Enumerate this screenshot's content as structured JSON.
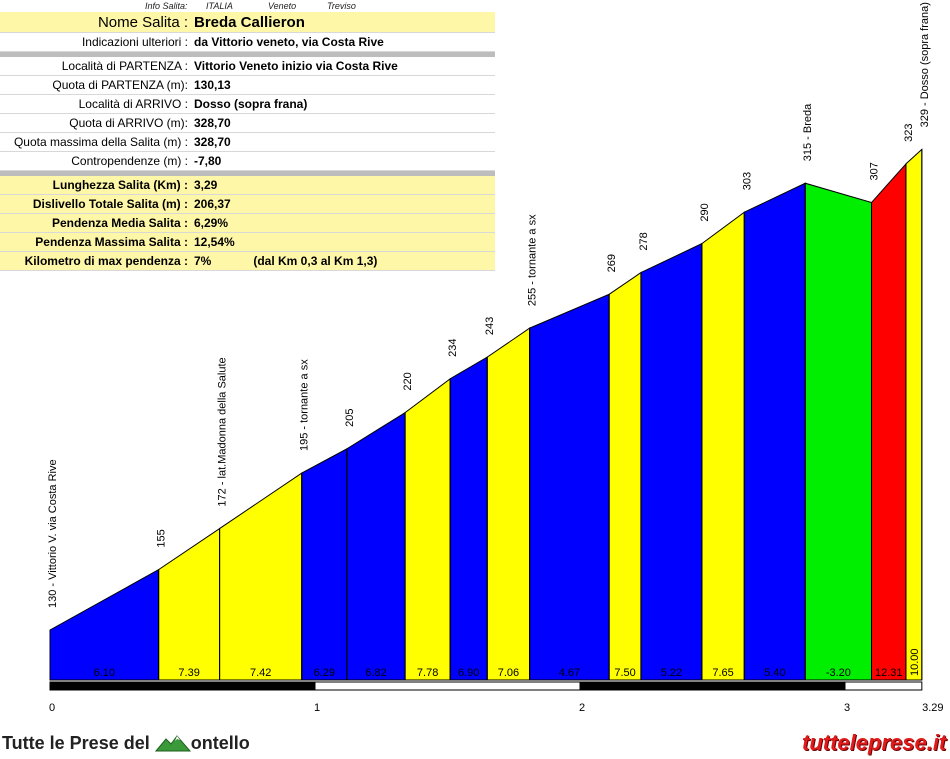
{
  "info_strip": {
    "label": "Info Salita:",
    "country": "ITALIA",
    "region": "Veneto",
    "province": "Treviso"
  },
  "info_rows": [
    {
      "label": "Nome Salita :",
      "value": "Breda Callieron",
      "style": "title"
    },
    {
      "label": "Indicazioni ulteriori :",
      "value": "da Vittorio veneto, via Costa Rive",
      "style": "plain"
    },
    {
      "label": "Località di PARTENZA :",
      "value": "Vittorio Veneto inizio via Costa Rive",
      "style": "plain"
    },
    {
      "label": "Quota di PARTENZA (m):",
      "value": "130,13",
      "style": "plain"
    },
    {
      "label": "Località di ARRIVO :",
      "value": "Dosso (sopra frana)",
      "style": "plain"
    },
    {
      "label": "Quota di ARRIVO (m):",
      "value": "328,70",
      "style": "plain"
    },
    {
      "label": "Quota massima della Salita (m) :",
      "value": "328,70",
      "style": "plain"
    },
    {
      "label": "Contropendenze (m) :",
      "value": "-7,80",
      "style": "plain"
    },
    {
      "label": "Lunghezza Salita (Km) :",
      "value": "3,29",
      "style": "bold"
    },
    {
      "label": "Dislivello Totale Salita (m) :",
      "value": "206,37",
      "style": "bold"
    },
    {
      "label": "Pendenza Media Salita :",
      "value": "6,29%",
      "style": "bold"
    },
    {
      "label": "Pendenza Massima Salita :",
      "value": "12,54%",
      "style": "bold"
    },
    {
      "label": "Kilometro di max pendenza :",
      "value": "7%",
      "note": "(dal Km 0,3 al Km 1,3)",
      "style": "bold"
    }
  ],
  "chart_data": {
    "type": "area",
    "xlabel": "",
    "ylabel": "",
    "x_ticks": [
      "0",
      "1",
      "2",
      "3",
      "3.29"
    ],
    "x_tick_values": [
      0,
      1,
      2,
      3,
      3.29
    ],
    "xlim": [
      0,
      3.29
    ],
    "altitude_labels": [
      {
        "x": 0.0,
        "alt": 130,
        "text": "130 - Vittorio V. via Costa Rive"
      },
      {
        "x": 0.41,
        "alt": 155,
        "text": "155"
      },
      {
        "x": 0.64,
        "alt": 172,
        "text": "172 - lat.Madonna della Salute"
      },
      {
        "x": 0.95,
        "alt": 195,
        "text": "195 - tornante a sx"
      },
      {
        "x": 1.12,
        "alt": 205,
        "text": "205"
      },
      {
        "x": 1.34,
        "alt": 220,
        "text": "220"
      },
      {
        "x": 1.51,
        "alt": 234,
        "text": "234"
      },
      {
        "x": 1.65,
        "alt": 243,
        "text": "243"
      },
      {
        "x": 1.81,
        "alt": 255,
        "text": "255 - tornante a sx"
      },
      {
        "x": 2.11,
        "alt": 269,
        "text": "269"
      },
      {
        "x": 2.23,
        "alt": 278,
        "text": "278"
      },
      {
        "x": 2.46,
        "alt": 290,
        "text": "290"
      },
      {
        "x": 2.62,
        "alt": 303,
        "text": "303"
      },
      {
        "x": 2.85,
        "alt": 315,
        "text": "315 - Breda"
      },
      {
        "x": 3.1,
        "alt": 307,
        "text": "307"
      },
      {
        "x": 3.23,
        "alt": 323,
        "text": "323"
      },
      {
        "x": 3.29,
        "alt": 329,
        "text": "329 - Dosso (sopra frana)"
      }
    ],
    "segments": [
      {
        "start": 0.0,
        "end": 0.41,
        "grade": "6.10",
        "color": "#0000ff"
      },
      {
        "start": 0.41,
        "end": 0.64,
        "grade": "7.39",
        "color": "#ffff00"
      },
      {
        "start": 0.64,
        "end": 0.95,
        "grade": "7.42",
        "color": "#ffff00"
      },
      {
        "start": 0.95,
        "end": 1.12,
        "grade": "6.29",
        "color": "#0000ff"
      },
      {
        "start": 1.12,
        "end": 1.34,
        "grade": "6.82",
        "color": "#0000ff"
      },
      {
        "start": 1.34,
        "end": 1.51,
        "grade": "7.78",
        "color": "#ffff00"
      },
      {
        "start": 1.51,
        "end": 1.65,
        "grade": "6.90",
        "color": "#0000ff"
      },
      {
        "start": 1.65,
        "end": 1.81,
        "grade": "7.06",
        "color": "#ffff00"
      },
      {
        "start": 1.81,
        "end": 2.11,
        "grade": "4.67",
        "color": "#0000ff"
      },
      {
        "start": 2.11,
        "end": 2.23,
        "grade": "7.50",
        "color": "#ffff00"
      },
      {
        "start": 2.23,
        "end": 2.46,
        "grade": "5.22",
        "color": "#0000ff"
      },
      {
        "start": 2.46,
        "end": 2.62,
        "grade": "7.65",
        "color": "#ffff00"
      },
      {
        "start": 2.62,
        "end": 2.85,
        "grade": "5.40",
        "color": "#0000ff"
      },
      {
        "start": 2.85,
        "end": 3.1,
        "grade": "-3.20",
        "color": "#00ee00"
      },
      {
        "start": 3.1,
        "end": 3.23,
        "grade": "12.31",
        "color": "#ff0000"
      },
      {
        "start": 3.23,
        "end": 3.29,
        "grade": "10.00",
        "color": "#ffff00"
      }
    ],
    "km_bar": {
      "colors": [
        "#000000",
        "#ffffff"
      ]
    }
  },
  "footer": {
    "brand": "Tutte le Prese del",
    "brand_tail": "ontello",
    "site": "tutteleprese.it"
  },
  "colors": {
    "panel_yellow": "#fff7a8",
    "separator_gray": "#bdbdbd",
    "site_red": "#e01b1b"
  }
}
